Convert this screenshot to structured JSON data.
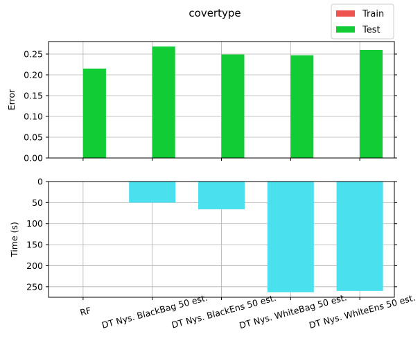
{
  "chart_data": [
    {
      "type": "bar",
      "title": "covertype",
      "xlabel": "",
      "ylabel": "Error",
      "ylim": [
        0,
        0.28
      ],
      "yticks": [
        "0.00",
        "0.05",
        "0.10",
        "0.15",
        "0.20",
        "0.25"
      ],
      "grid": true,
      "legend_position": "top-right",
      "categories": [
        "RF",
        "DT Nys. BlackBag 50 est.",
        "DT Nys. BlackEns 50 est.",
        "DT Nys. WhiteBag 50 est.",
        "DT Nys. WhiteEns 50 est."
      ],
      "series": [
        {
          "name": "Train",
          "color": "#ef5350",
          "values": [
            0,
            0,
            0,
            0,
            0
          ]
        },
        {
          "name": "Test",
          "color": "#12cc36",
          "values": [
            0.215,
            0.268,
            0.249,
            0.247,
            0.26
          ]
        }
      ]
    },
    {
      "type": "bar",
      "xlabel": "",
      "ylabel": "Time (s)",
      "ylim": [
        275,
        0
      ],
      "inverted_y": true,
      "yticks": [
        "0",
        "50",
        "100",
        "150",
        "200",
        "250"
      ],
      "grid": true,
      "categories": [
        "RF",
        "DT Nys. BlackBag 50 est.",
        "DT Nys. BlackEns 50 est.",
        "DT Nys. WhiteBag 50 est.",
        "DT Nys. WhiteEns 50 est."
      ],
      "series": [
        {
          "color": "#4ae0ee",
          "values": [
            0,
            50,
            66,
            263,
            260
          ]
        }
      ]
    }
  ]
}
